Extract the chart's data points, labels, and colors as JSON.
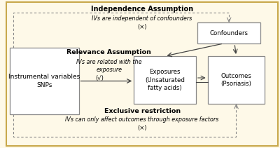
{
  "bg_color": "#fef9e8",
  "border_color": "#c8a84b",
  "box_fill": "#fefae8",
  "box_fill_white": "#ffffff",
  "box_edge": "#888888",
  "arrow_color": "#444444",
  "dashed_color": "#888888",
  "iv_label": "Instrumental variables\nSNPs",
  "exposure_label": "Exposures\n(Unsaturated\nfatty acids)",
  "outcome_label": "Outcomes\n(Psoriasis)",
  "confounder_label": "Confounders",
  "assump1_title": "Independence Assumption",
  "assump1_text": "IVs are independent of confounders",
  "assump1_x_mark": "(×)",
  "assump2_title": "Relevance Assumption",
  "assump2_text1": "IVs are related with the",
  "assump2_text2": "exposure",
  "assump2_check": "(√)",
  "assump3_title": "Exclusive restriction",
  "assump3_text": "IVs can only affect outcomes through exposure factors",
  "assump3_x_mark": "(×)"
}
